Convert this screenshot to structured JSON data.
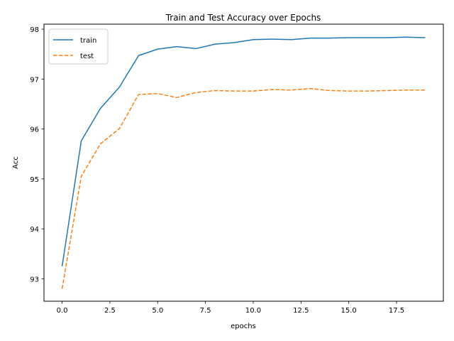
{
  "chart_data": {
    "type": "line",
    "title": "Train and Test Accuracy over Epochs",
    "xlabel": "epochs",
    "ylabel": "Acc",
    "xlim": [
      -0.95,
      19.95
    ],
    "ylim": [
      92.55,
      98.1
    ],
    "x_ticks": [
      0,
      2.5,
      5,
      7.5,
      10,
      12.5,
      15,
      17.5
    ],
    "x_tick_labels": [
      "0.0",
      "2.5",
      "5.0",
      "7.5",
      "10.0",
      "12.5",
      "15.0",
      "17.5"
    ],
    "y_ticks": [
      93,
      94,
      95,
      96,
      97,
      98
    ],
    "y_tick_labels": [
      "93",
      "94",
      "95",
      "96",
      "97",
      "98"
    ],
    "grid": false,
    "legend": "upper-left",
    "x": [
      0,
      1,
      2,
      3,
      4,
      5,
      6,
      7,
      8,
      9,
      10,
      11,
      12,
      13,
      14,
      15,
      16,
      17,
      18,
      19
    ],
    "series": [
      {
        "name": "train",
        "color": "#1f77b4",
        "style": "solid",
        "values": [
          93.25,
          95.76,
          96.41,
          96.84,
          97.47,
          97.6,
          97.65,
          97.61,
          97.7,
          97.73,
          97.79,
          97.8,
          97.79,
          97.82,
          97.82,
          97.83,
          97.83,
          97.83,
          97.84,
          97.83
        ]
      },
      {
        "name": "test",
        "color": "#ff7f0e",
        "style": "dashed",
        "values": [
          92.8,
          95.05,
          95.7,
          96.01,
          96.69,
          96.71,
          96.63,
          96.73,
          96.77,
          96.76,
          96.76,
          96.79,
          96.78,
          96.81,
          96.77,
          96.76,
          96.76,
          96.77,
          96.78,
          96.78
        ]
      }
    ]
  }
}
